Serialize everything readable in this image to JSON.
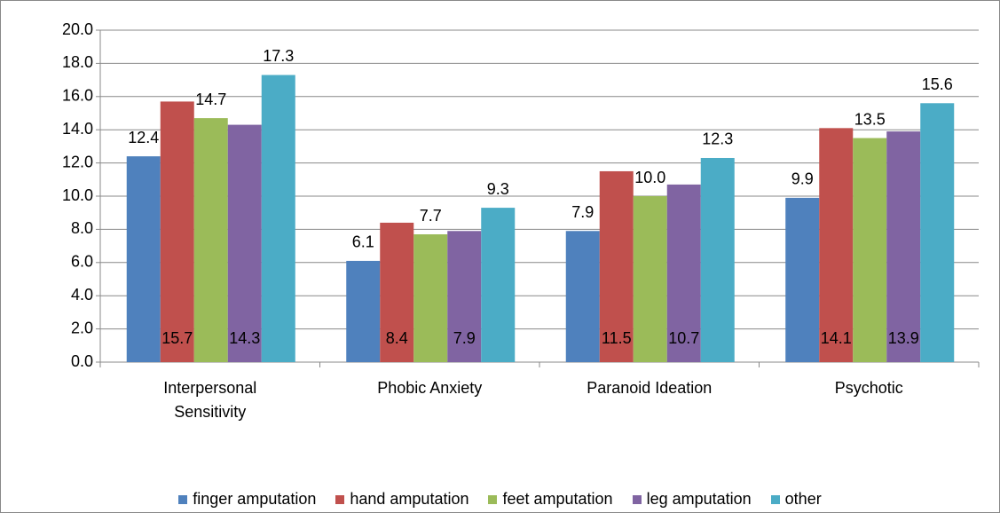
{
  "chart_data": {
    "type": "bar",
    "categories": [
      "Interpersonal Sensitivity",
      "Phobic Anxiety",
      "Paranoid Ideation",
      "Psychotic"
    ],
    "series": [
      {
        "name": "finger amputation",
        "color": "#4f81bd",
        "values": [
          12.4,
          6.1,
          7.9,
          9.9
        ],
        "value_labels": [
          "12.4",
          "6.1",
          "7.9",
          "9.9"
        ],
        "label_position": "above"
      },
      {
        "name": "hand amputation",
        "color": "#c0504d",
        "values": [
          15.7,
          8.4,
          11.5,
          14.1
        ],
        "value_labels": [
          "15.7",
          "8.4",
          "11.5",
          "14.1"
        ],
        "label_position": "base"
      },
      {
        "name": "feet amputation",
        "color": "#9bbb59",
        "values": [
          14.7,
          7.7,
          10.0,
          13.5
        ],
        "value_labels": [
          "14.7",
          "7.7",
          "10.0",
          "13.5"
        ],
        "label_position": "above"
      },
      {
        "name": "leg amputation",
        "color": "#8064a2",
        "values": [
          14.3,
          7.9,
          10.7,
          13.9
        ],
        "value_labels": [
          "14.3",
          "7.9",
          "10.7",
          "13.9"
        ],
        "label_position": "base"
      },
      {
        "name": "other",
        "color": "#4bacc6",
        "values": [
          17.3,
          9.3,
          12.3,
          15.6
        ],
        "value_labels": [
          "17.3",
          "9.3",
          "12.3",
          "15.6"
        ],
        "label_position": "above"
      }
    ],
    "ylim": [
      0,
      20
    ],
    "yticks": [
      {
        "value": 0,
        "label": "0.0"
      },
      {
        "value": 2,
        "label": "2.0"
      },
      {
        "value": 4,
        "label": "4.0"
      },
      {
        "value": 6,
        "label": "6.0"
      },
      {
        "value": 8,
        "label": "8.0"
      },
      {
        "value": 10,
        "label": "10.0"
      },
      {
        "value": 12,
        "label": "12.0"
      },
      {
        "value": 14,
        "label": "14.0"
      },
      {
        "value": 16,
        "label": "16.0"
      },
      {
        "value": 18,
        "label": "18.0"
      },
      {
        "value": 20,
        "label": "20.0"
      }
    ],
    "grid": true,
    "legend": "bottom"
  }
}
